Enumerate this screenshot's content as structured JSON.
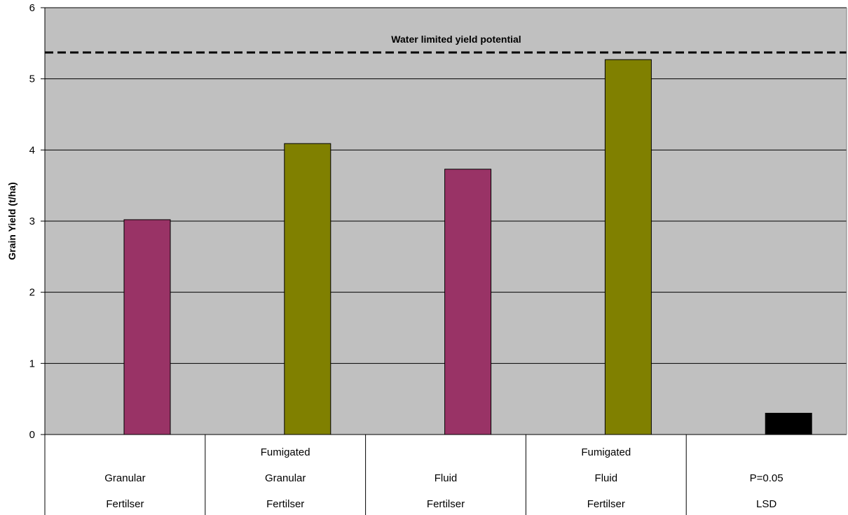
{
  "chart_data": {
    "type": "bar",
    "title": "",
    "xlabel": "",
    "ylabel": "Grain Yield (t/ha)",
    "ylim": [
      0,
      6
    ],
    "yticks": [
      0,
      1,
      2,
      3,
      4,
      5,
      6
    ],
    "grid": true,
    "categories": [
      [
        "",
        "Granular",
        "Fertilser"
      ],
      [
        "Fumigated",
        "Granular",
        "Fertilser"
      ],
      [
        "",
        "Fluid",
        "Fertilser"
      ],
      [
        "Fumigated",
        "Fluid",
        "Fertilser"
      ],
      [
        "",
        "P=0.05",
        "LSD"
      ]
    ],
    "values": [
      3.02,
      4.09,
      3.73,
      5.27,
      0.3
    ],
    "bar_colors": [
      "#993366",
      "#808000",
      "#993366",
      "#808000",
      "#000000"
    ],
    "plot_background": "#c0c0c0",
    "reference_line": {
      "label": "Water limited yield potential",
      "value": 5.37,
      "style": "dashed"
    }
  }
}
